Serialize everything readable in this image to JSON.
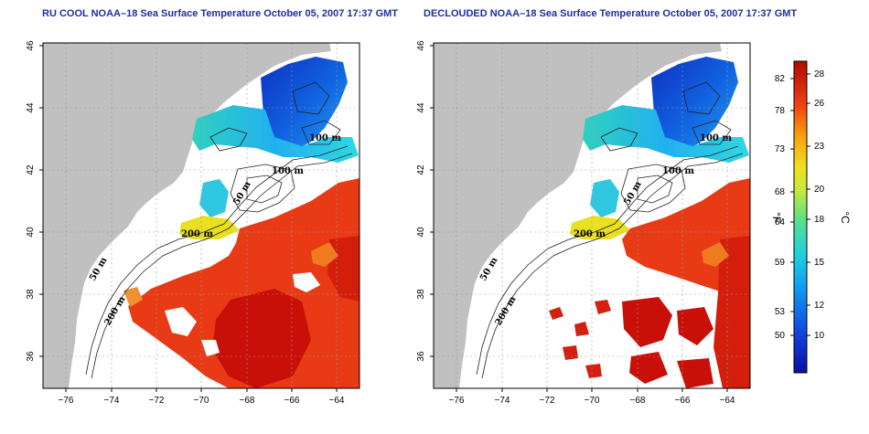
{
  "panels": [
    {
      "title": "RU COOL NOAA–18 Sea Surface Temperature October 05, 2007 17:37 GMT",
      "contour_labels": [
        "100 m",
        "50 m",
        "200 m",
        "50 m",
        "200 m",
        "100 m"
      ]
    },
    {
      "title": "DECLOUDED NOAA–18 Sea Surface Temperature October 05, 2007 17:37 GMT",
      "contour_labels": [
        "100 m",
        "50 m",
        "200 m",
        "50 m",
        "200 m",
        "100 m"
      ]
    }
  ],
  "x_ticks": [
    "−76",
    "−74",
    "−72",
    "−70",
    "−68",
    "−66",
    "−64"
  ],
  "y_ticks": [
    "46",
    "44",
    "42",
    "40",
    "38",
    "36"
  ],
  "colorbar": {
    "fahrenheit_label": "°F",
    "celsius_label": "°C",
    "fahrenheit_ticks": [
      "82",
      "78",
      "73",
      "68",
      "64",
      "59",
      "53",
      "50"
    ],
    "celsius_ticks": [
      "28",
      "26",
      "23",
      "20",
      "18",
      "15",
      "12",
      "10"
    ]
  },
  "colors": {
    "land": "#c0c0c0",
    "water_warm": "#e03010",
    "water_cold": "#1030c0",
    "cloud": "#ffffff"
  }
}
